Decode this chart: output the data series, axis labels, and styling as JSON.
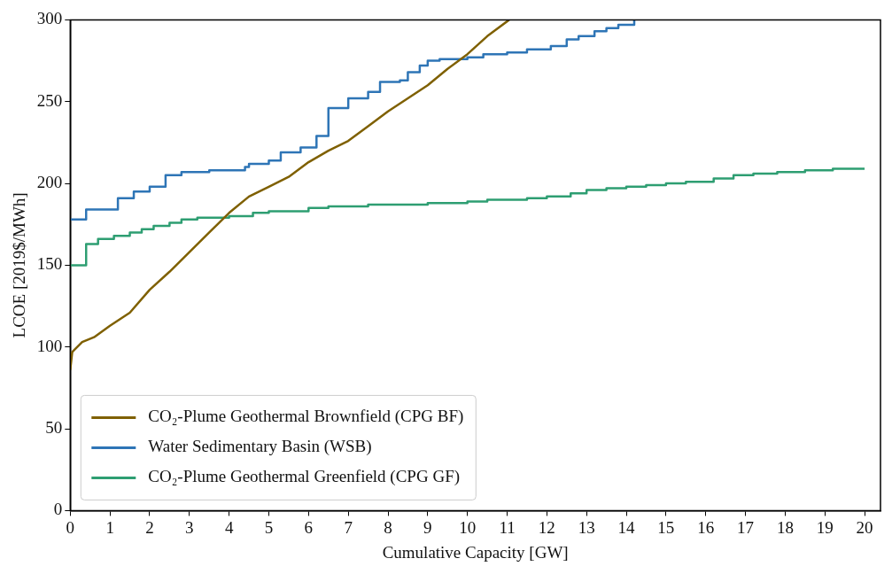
{
  "chart_data": {
    "type": "line",
    "xlabel": "Cumulative Capacity [GW]",
    "ylabel": "LCOE [2019$/MWh]",
    "xlim": [
      0,
      20.4
    ],
    "ylim": [
      0,
      300
    ],
    "xticks": [
      0,
      1,
      2,
      3,
      4,
      5,
      6,
      7,
      8,
      9,
      10,
      11,
      12,
      13,
      14,
      15,
      16,
      17,
      18,
      19,
      20
    ],
    "yticks": [
      0,
      50,
      100,
      150,
      200,
      250,
      300
    ],
    "grid": false,
    "legend": "bottom left",
    "marker": "none",
    "line_style": "solid",
    "series": [
      {
        "name": "CO₂-Plume Geothermal Brownfield (CPG BF)",
        "type": "line",
        "color": "#7f6000",
        "x": [
          0,
          0.05,
          0.3,
          0.6,
          1,
          1.5,
          2,
          2.5,
          3,
          3.5,
          4,
          4.5,
          5,
          5.5,
          6,
          6.5,
          7,
          7.5,
          8,
          8.5,
          9,
          9.5,
          10,
          10.5,
          11.05
        ],
        "values": [
          86,
          97,
          103,
          106,
          113,
          121,
          135,
          146,
          158,
          170,
          182,
          192,
          198,
          204,
          213,
          220,
          226,
          235,
          244,
          252,
          260,
          270,
          279,
          290,
          300
        ]
      },
      {
        "name": "Water Sedimentary Basin (WSB)",
        "type": "step",
        "color": "#2e75b6",
        "x": [
          0,
          0.4,
          1.2,
          1.6,
          2,
          2.4,
          2.8,
          3.5,
          4.4,
          4.5,
          5,
          5.3,
          5.8,
          6.2,
          6.5,
          7,
          7.5,
          7.8,
          8.3,
          8.5,
          8.8,
          9,
          9.3,
          10,
          10.4,
          11,
          11.5,
          12.1,
          12.5,
          12.8,
          13.2,
          13.5,
          13.8,
          14.2
        ],
        "values": [
          178,
          184,
          191,
          195,
          198,
          205,
          207,
          208,
          210,
          212,
          214,
          219,
          222,
          229,
          246,
          252,
          256,
          262,
          263,
          268,
          272,
          275,
          276,
          277,
          279,
          280,
          282,
          284,
          288,
          290,
          293,
          295,
          297,
          300
        ]
      },
      {
        "name": "CO₂-Plume Geothermal Greenfield (CPG GF)",
        "type": "step",
        "color": "#2e9e72",
        "x": [
          0,
          0.4,
          0.7,
          1.1,
          1.5,
          1.8,
          2.1,
          2.5,
          2.8,
          3.2,
          4,
          4.6,
          5,
          6,
          6.5,
          7.5,
          9,
          10,
          10.5,
          11.5,
          12,
          12.6,
          13,
          13.5,
          14,
          14.5,
          15,
          15.5,
          16.2,
          16.7,
          17.2,
          17.8,
          18.5,
          19.2,
          20
        ],
        "values": [
          150,
          163,
          166,
          168,
          170,
          172,
          174,
          176,
          178,
          179,
          180,
          182,
          183,
          185,
          186,
          187,
          188,
          189,
          190,
          191,
          192,
          194,
          196,
          197,
          198,
          199,
          200,
          201,
          203,
          205,
          206,
          207,
          208,
          209,
          209
        ]
      }
    ]
  }
}
